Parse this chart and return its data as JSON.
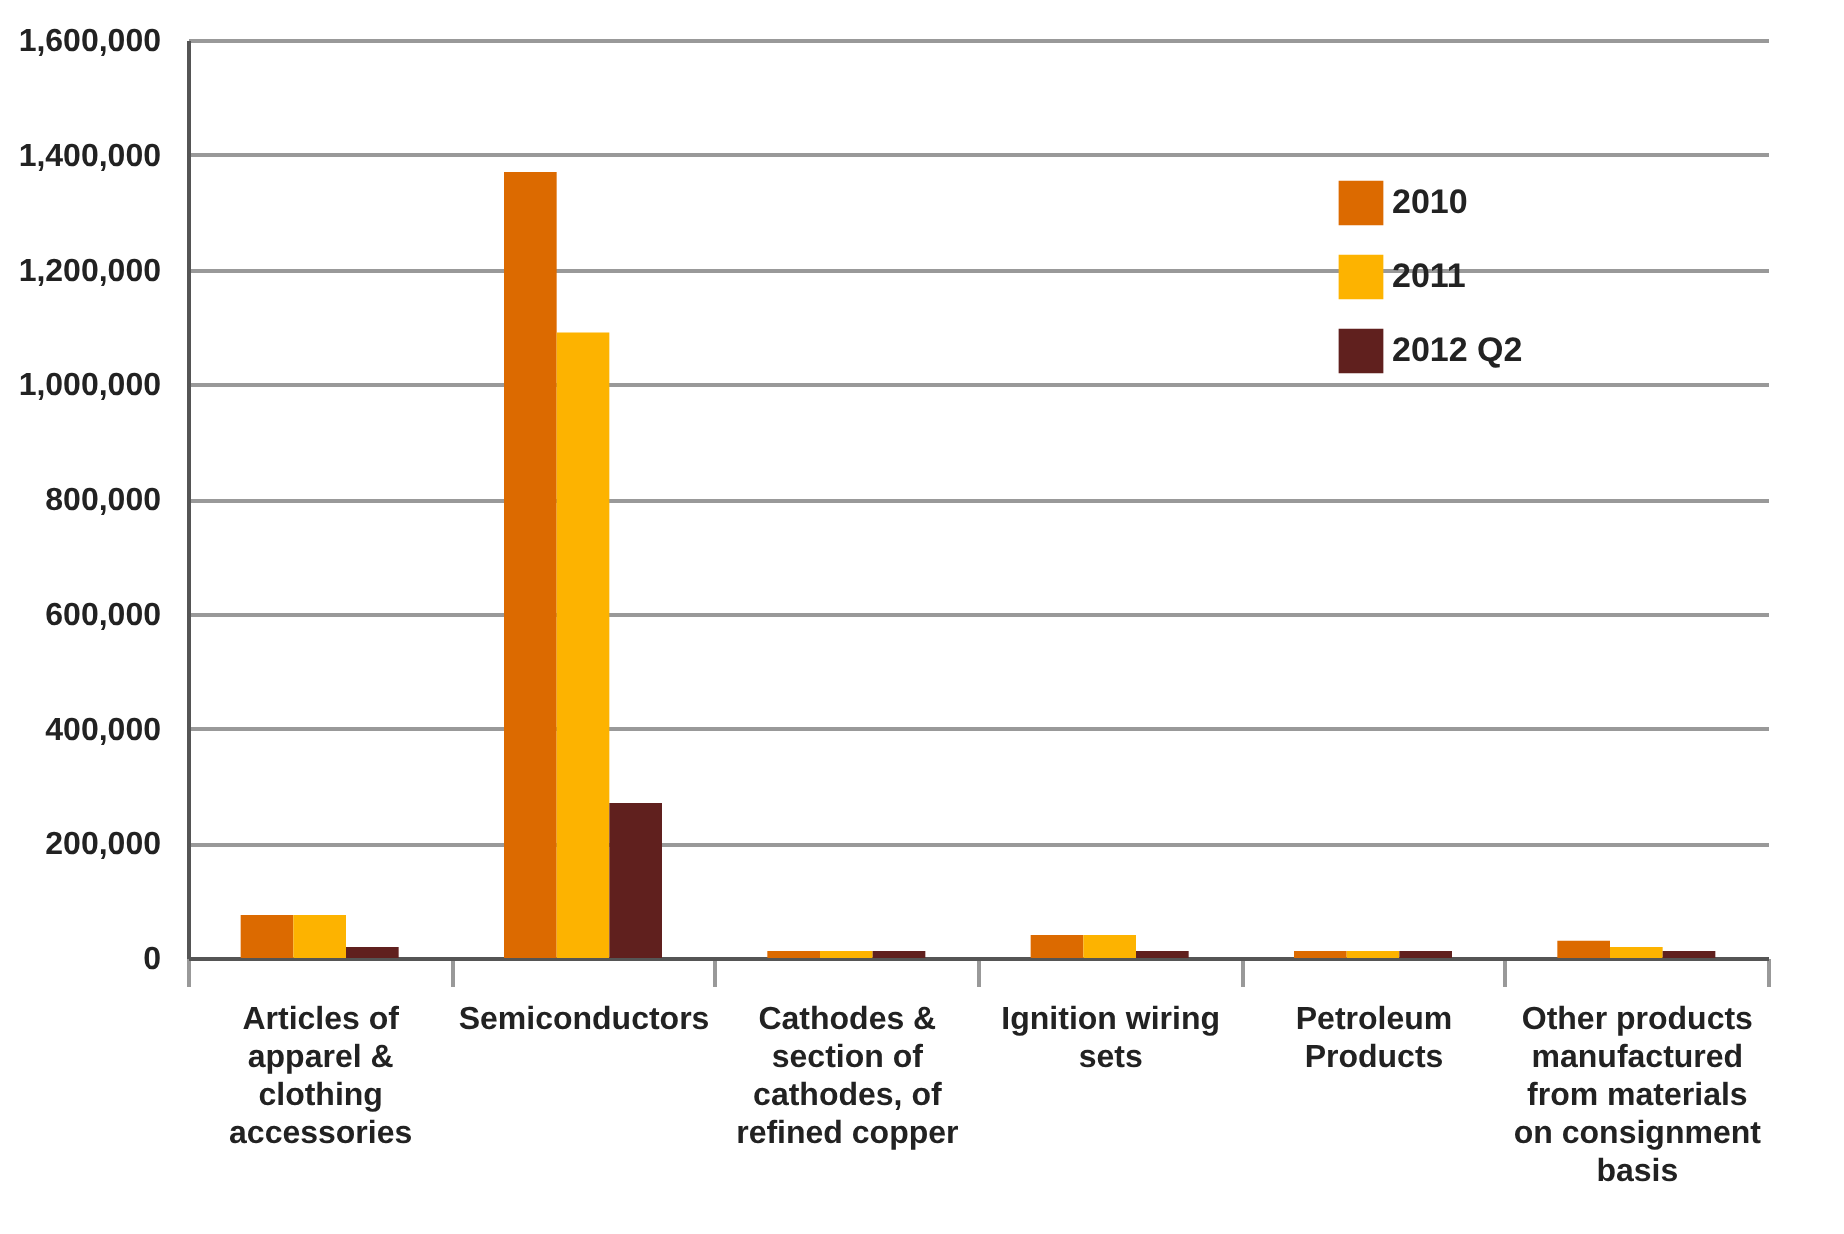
{
  "chart_data": {
    "type": "bar",
    "categories": [
      "Articles of apparel & clothing accessories",
      "Semiconductors",
      "Cathodes & section of cathodes, of refined copper",
      "Ignition wiring sets",
      "Petroleum Products",
      "Other products manufactured from materials on consignment basis"
    ],
    "series": [
      {
        "name": "2010",
        "color": "#dc6a00",
        "values": [
          75000,
          1370000,
          12000,
          40000,
          12000,
          30000
        ]
      },
      {
        "name": "2011",
        "color": "#fdb300",
        "values": [
          75000,
          1090000,
          12000,
          40000,
          12000,
          19000
        ]
      },
      {
        "name": "2012 Q2",
        "color": "#60201e",
        "values": [
          19000,
          270000,
          12000,
          12000,
          12000,
          12000
        ]
      }
    ],
    "ylim": [
      0,
      1600000
    ],
    "yticks": [
      0,
      {
        "value": 200000,
        "label": "200,000"
      },
      {
        "value": 400000,
        "label": "400,000"
      },
      {
        "value": 600000,
        "label": "600,000"
      },
      {
        "value": 800000,
        "label": "800,000"
      },
      {
        "value": 1000000,
        "label": "1,000,000"
      },
      {
        "value": 1200000,
        "label": "1,200,000"
      },
      {
        "value": 1400000,
        "label": "1,400,000"
      },
      {
        "value": 1600000,
        "label": "1,600,000"
      }
    ],
    "grid": "y",
    "legend": "top right"
  }
}
